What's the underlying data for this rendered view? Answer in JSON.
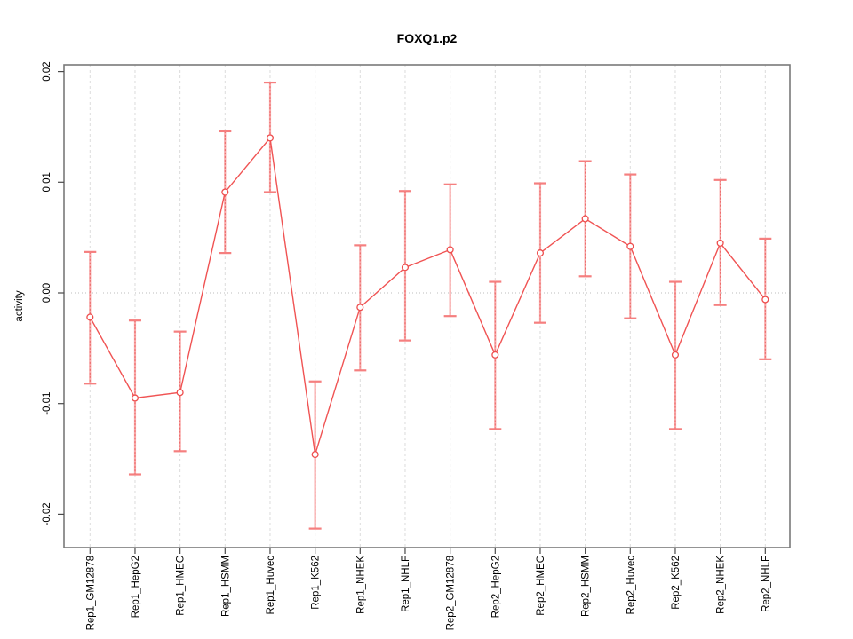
{
  "chart_data": {
    "type": "line",
    "title": "FOXQ1.p2",
    "xlabel": "",
    "ylabel": "activity",
    "legend": "none",
    "grid": {
      "vertical_dashed_gridlines": true,
      "horizontal_dotted_zero_line": true
    },
    "ylim": [
      -0.023,
      0.0206
    ],
    "yticks": [
      0.02,
      0.01,
      0.0,
      -0.01,
      -0.02
    ],
    "ytick_labels": [
      "0.02",
      "0.01",
      "0.00",
      "-0.01",
      "-0.02"
    ],
    "categories": [
      "Rep1_GM12878",
      "Rep1_HepG2",
      "Rep1_HMEC",
      "Rep1_HSMM",
      "Rep1_Huvec",
      "Rep1_K562",
      "Rep1_NHEK",
      "Rep1_NHLF",
      "Rep2_GM12878",
      "Rep2_HepG2",
      "Rep2_HMEC",
      "Rep2_HSMM",
      "Rep2_Huvec",
      "Rep2_K562",
      "Rep2_NHEK",
      "Rep2_NHLF"
    ],
    "series": [
      {
        "name": "activity",
        "marker": "open-circle",
        "values": [
          -0.0022,
          -0.0095,
          -0.009,
          0.0091,
          0.014,
          -0.0146,
          -0.0013,
          0.0023,
          0.0039,
          -0.0056,
          0.0036,
          0.0067,
          0.0042,
          -0.0056,
          0.0045,
          -0.0006
        ],
        "err_high": [
          0.0037,
          -0.0025,
          -0.0035,
          0.0146,
          0.019,
          -0.008,
          0.0043,
          0.0092,
          0.0098,
          0.001,
          0.0099,
          0.0119,
          0.0107,
          0.001,
          0.0102,
          0.0049
        ],
        "err_low": [
          -0.0082,
          -0.0164,
          -0.0143,
          0.0036,
          0.0091,
          -0.0213,
          -0.007,
          -0.0043,
          -0.0021,
          -0.0123,
          -0.0027,
          0.0015,
          -0.0023,
          -0.0123,
          -0.0011,
          -0.006
        ]
      }
    ],
    "colors": {
      "point_stroke": "#ee4d4d",
      "series_line": "#f05353",
      "errorbar_line": "#f89a9a",
      "errorbar_dash_overlay": "#e85555",
      "errorbar_cap": "#f57f7f",
      "gridline": "#dcdcdc",
      "zero_line": "#bdbdbd",
      "plot_border": "#7a7a7a",
      "tick": "#4a4a4a",
      "text": "#000000",
      "background": "#ffffff"
    }
  }
}
